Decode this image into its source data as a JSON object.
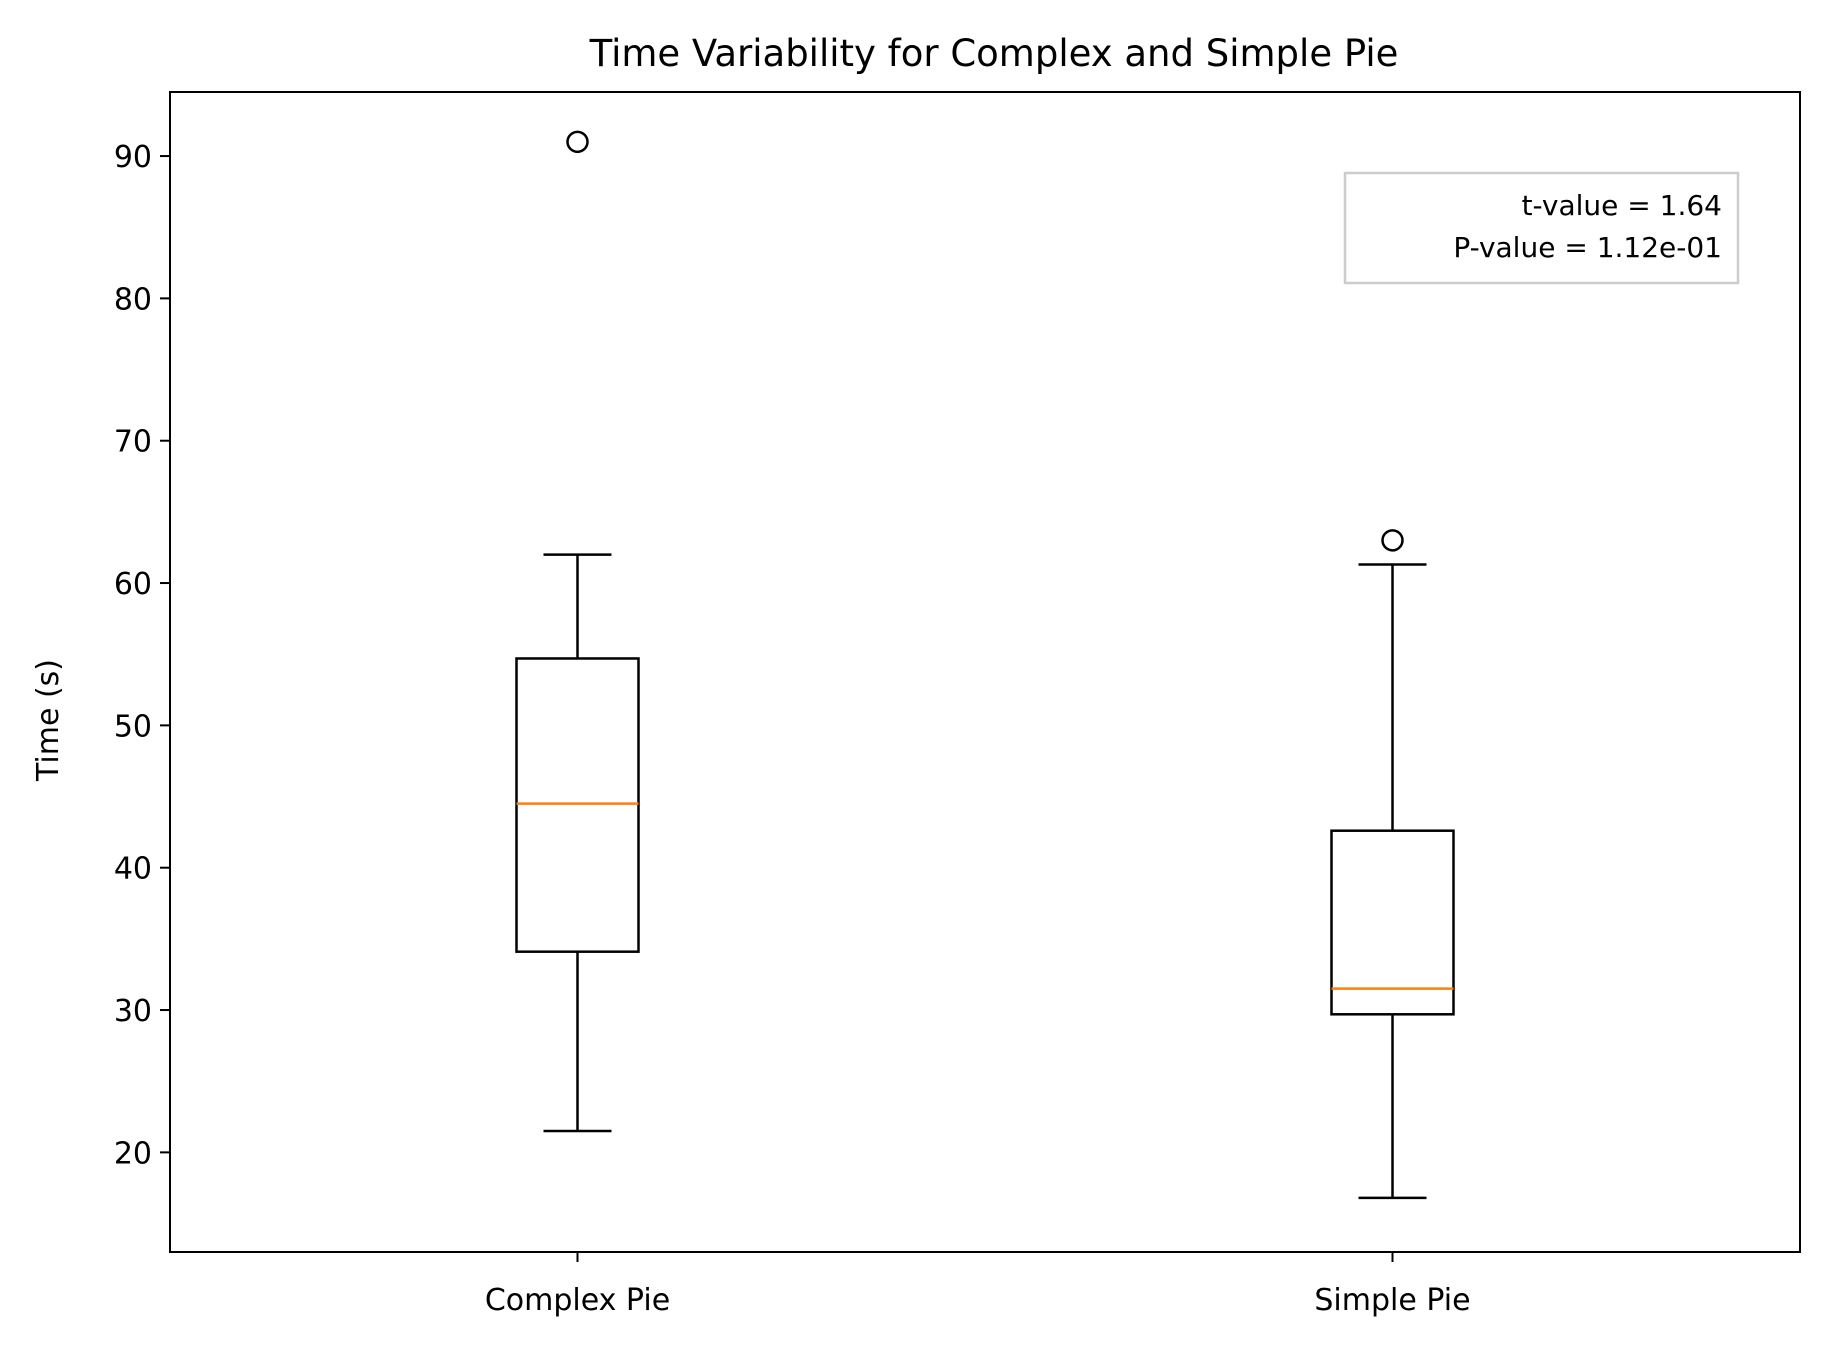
{
  "chart_data": {
    "type": "boxplot",
    "title": "Time Variability for Complex and Simple Pie",
    "xlabel": "",
    "ylabel": "Time (s)",
    "ylim": [
      13,
      94.5
    ],
    "yticks": [
      20,
      30,
      40,
      50,
      60,
      70,
      80,
      90
    ],
    "grid": false,
    "categories": [
      "Complex Pie",
      "Simple Pie"
    ],
    "boxes": [
      {
        "category": "Complex Pie",
        "whisker_low": 21.5,
        "q1": 34.1,
        "median": 44.5,
        "q3": 54.7,
        "whisker_high": 62.0,
        "outliers": [
          91.0
        ]
      },
      {
        "category": "Simple Pie",
        "whisker_low": 16.8,
        "q1": 29.7,
        "median": 31.5,
        "q3": 42.6,
        "whisker_high": 61.3,
        "outliers": [
          63.0
        ]
      }
    ],
    "annotation": {
      "lines": [
        "t-value = 1.64",
        "P-value = 1.12e-01"
      ],
      "placement": "top-right"
    },
    "colors": {
      "box": "#000000",
      "median": "#ff7f0e",
      "annotation_border": "#cccccc"
    }
  }
}
